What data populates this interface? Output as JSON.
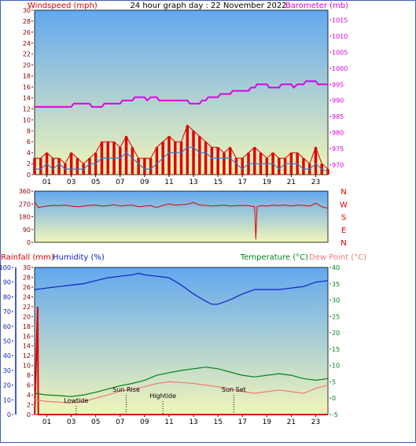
{
  "colors": {
    "wind": "#e00000",
    "gust": "#e00000",
    "avgwind": "#2a7fd6",
    "baro": "#e000e0",
    "dir": "#e00000",
    "rain": "#e00000",
    "humidity": "#1020c0",
    "temp": "#00841a",
    "dew": "#f07878",
    "axis_dark": "#8a0000",
    "sky_top": "#62a8ef",
    "sky_bottom": "#f2f5b8"
  },
  "chart_data": [
    {
      "type": "line",
      "title": "24 hour graph day : 22 November 2022",
      "series_labels": {
        "left": "Windspeed (mph)",
        "right": "Barometer (mb)"
      },
      "x_ticks": [
        "01",
        "03",
        "05",
        "07",
        "09",
        "11",
        "13",
        "15",
        "17",
        "19",
        "21",
        "23"
      ],
      "left_ticks": [
        "0",
        "2",
        "4",
        "6",
        "8",
        "10",
        "12",
        "14",
        "16",
        "18",
        "20",
        "22",
        "24",
        "26",
        "28",
        "30"
      ],
      "right_ticks": [
        "970",
        "975",
        "980",
        "985",
        "990",
        "995",
        "1000",
        "1005",
        "1010",
        "1015"
      ],
      "ylim_left": [
        0,
        30
      ],
      "ylim_right": [
        967,
        1018
      ],
      "xlim": [
        0,
        24
      ],
      "gust": [
        [
          0,
          3
        ],
        [
          0.5,
          3
        ],
        [
          1,
          4
        ],
        [
          1.5,
          3
        ],
        [
          2,
          3
        ],
        [
          2.5,
          2
        ],
        [
          3,
          4
        ],
        [
          3.5,
          3
        ],
        [
          4,
          2
        ],
        [
          4.5,
          3
        ],
        [
          5,
          4
        ],
        [
          5.5,
          6
        ],
        [
          6,
          6
        ],
        [
          6.5,
          6
        ],
        [
          7,
          5
        ],
        [
          7.5,
          7
        ],
        [
          8,
          5
        ],
        [
          8.5,
          3
        ],
        [
          9,
          3
        ],
        [
          9.5,
          3
        ],
        [
          10,
          5
        ],
        [
          10.5,
          6
        ],
        [
          11,
          7
        ],
        [
          11.5,
          6
        ],
        [
          12,
          6
        ],
        [
          12.5,
          9
        ],
        [
          13,
          8
        ],
        [
          13.5,
          7
        ],
        [
          14,
          6
        ],
        [
          14.5,
          5
        ],
        [
          15,
          5
        ],
        [
          15.5,
          4
        ],
        [
          16,
          5
        ],
        [
          16.5,
          3
        ],
        [
          17,
          3
        ],
        [
          17.5,
          4
        ],
        [
          18,
          5
        ],
        [
          18.5,
          4
        ],
        [
          19,
          3
        ],
        [
          19.5,
          4
        ],
        [
          20,
          3
        ],
        [
          20.5,
          3
        ],
        [
          21,
          4
        ],
        [
          21.5,
          4
        ],
        [
          22,
          3
        ],
        [
          22.5,
          2
        ],
        [
          23,
          5
        ],
        [
          23.5,
          2
        ],
        [
          24,
          1
        ]
      ],
      "avg": [
        [
          0,
          1
        ],
        [
          0.5,
          1
        ],
        [
          1,
          2
        ],
        [
          1.5,
          1
        ],
        [
          2,
          2
        ],
        [
          2.5,
          1
        ],
        [
          3,
          1
        ],
        [
          3.5,
          1
        ],
        [
          4,
          1
        ],
        [
          4.5,
          2
        ],
        [
          5,
          2
        ],
        [
          5.5,
          3
        ],
        [
          6,
          3
        ],
        [
          6.5,
          3
        ],
        [
          7,
          3
        ],
        [
          7.5,
          4
        ],
        [
          8,
          3
        ],
        [
          8.5,
          2
        ],
        [
          9,
          1
        ],
        [
          9.5,
          1
        ],
        [
          10,
          2
        ],
        [
          10.5,
          3
        ],
        [
          11,
          4
        ],
        [
          11.5,
          4
        ],
        [
          12,
          4
        ],
        [
          12.5,
          5
        ],
        [
          13,
          5
        ],
        [
          13.5,
          4
        ],
        [
          14,
          4
        ],
        [
          14.5,
          3
        ],
        [
          15,
          3
        ],
        [
          15.5,
          3
        ],
        [
          16,
          3
        ],
        [
          16.5,
          2
        ],
        [
          17,
          1
        ],
        [
          17.5,
          2
        ],
        [
          18,
          2
        ],
        [
          18.5,
          2
        ],
        [
          19,
          2
        ],
        [
          19.5,
          2
        ],
        [
          20,
          1
        ],
        [
          20.5,
          2
        ],
        [
          21,
          2
        ],
        [
          21.5,
          2
        ],
        [
          22,
          1
        ],
        [
          22.5,
          1
        ],
        [
          23,
          2
        ],
        [
          23.5,
          1
        ],
        [
          24,
          0.5
        ]
      ],
      "barometer": [
        [
          0,
          988
        ],
        [
          3,
          988
        ],
        [
          3.2,
          989
        ],
        [
          4.5,
          989
        ],
        [
          4.7,
          988
        ],
        [
          5.5,
          988
        ],
        [
          5.7,
          989
        ],
        [
          7,
          989
        ],
        [
          7.2,
          990
        ],
        [
          8,
          990
        ],
        [
          8.2,
          991
        ],
        [
          9,
          991
        ],
        [
          9.2,
          990
        ],
        [
          9.5,
          991
        ],
        [
          10,
          991
        ],
        [
          10.2,
          990
        ],
        [
          11,
          990
        ],
        [
          12.5,
          990
        ],
        [
          12.7,
          989
        ],
        [
          13,
          989
        ],
        [
          13.5,
          989
        ],
        [
          13.7,
          990
        ],
        [
          14,
          990
        ],
        [
          14.2,
          991
        ],
        [
          15,
          991
        ],
        [
          15.2,
          992
        ],
        [
          16,
          992
        ],
        [
          16.2,
          993
        ],
        [
          17.5,
          993
        ],
        [
          17.7,
          994
        ],
        [
          18,
          994
        ],
        [
          18.2,
          995
        ],
        [
          19,
          995
        ],
        [
          19.2,
          994
        ],
        [
          20,
          994
        ],
        [
          20.2,
          995
        ],
        [
          21,
          995
        ],
        [
          21.2,
          994
        ],
        [
          21.5,
          995
        ],
        [
          22,
          995
        ],
        [
          22.2,
          996
        ],
        [
          23,
          996
        ],
        [
          23.2,
          995
        ],
        [
          24,
          995
        ]
      ]
    },
    {
      "type": "scatter",
      "series_labels": {
        "right": [
          "N",
          "W",
          "S",
          "E",
          "N"
        ]
      },
      "left_ticks": [
        "0",
        "90",
        "180",
        "270",
        "360"
      ],
      "ylim": [
        0,
        360
      ],
      "xlim": [
        0,
        24
      ],
      "direction": [
        [
          0,
          285
        ],
        [
          0.3,
          245
        ],
        [
          0.6,
          250
        ],
        [
          1,
          255
        ],
        [
          1.5,
          260
        ],
        [
          2,
          258
        ],
        [
          2.5,
          262
        ],
        [
          3,
          255
        ],
        [
          3.5,
          250
        ],
        [
          4,
          255
        ],
        [
          4.5,
          260
        ],
        [
          5,
          262
        ],
        [
          5.5,
          255
        ],
        [
          6,
          258
        ],
        [
          6.5,
          265
        ],
        [
          7,
          255
        ],
        [
          7.5,
          260
        ],
        [
          8,
          262
        ],
        [
          8.5,
          250
        ],
        [
          9,
          255
        ],
        [
          9.5,
          258
        ],
        [
          10,
          245
        ],
        [
          10.5,
          260
        ],
        [
          11,
          270
        ],
        [
          11.5,
          262
        ],
        [
          12,
          265
        ],
        [
          12.5,
          268
        ],
        [
          13,
          280
        ],
        [
          13.5,
          262
        ],
        [
          14,
          260
        ],
        [
          14.5,
          255
        ],
        [
          15,
          258
        ],
        [
          15.5,
          262
        ],
        [
          16,
          255
        ],
        [
          16.5,
          258
        ],
        [
          17,
          260
        ],
        [
          17.5,
          258
        ],
        [
          18,
          250
        ],
        [
          18.1,
          20
        ],
        [
          18.2,
          250
        ],
        [
          18.5,
          258
        ],
        [
          19,
          255
        ],
        [
          19.5,
          262
        ],
        [
          20,
          258
        ],
        [
          20.5,
          262
        ],
        [
          21,
          255
        ],
        [
          21.5,
          262
        ],
        [
          22,
          260
        ],
        [
          22.5,
          255
        ],
        [
          23,
          275
        ],
        [
          23.5,
          250
        ],
        [
          24,
          240
        ]
      ]
    },
    {
      "type": "line",
      "series_labels": {
        "rain": "Rainfall (mm)",
        "humidity": "Humidity (%)",
        "temp": "Temperature (°C)",
        "dew": "Dew Point (°C)"
      },
      "rain_ticks": [
        "0",
        "2",
        "4",
        "6",
        "8",
        "10",
        "12",
        "14",
        "16",
        "18",
        "20",
        "22",
        "24",
        "26",
        "28",
        "30"
      ],
      "humidity_ticks": [
        "0",
        "10",
        "20",
        "30",
        "40",
        "50",
        "60",
        "70",
        "80",
        "90",
        "100"
      ],
      "temp_ticks": [
        "-5",
        "0",
        "5",
        "10",
        "15",
        "20",
        "25",
        "30",
        "35",
        "40"
      ],
      "ylim_humidity": [
        0,
        100
      ],
      "ylim_temp": [
        -5,
        40
      ],
      "xlim": [
        0,
        24
      ],
      "humidity": [
        [
          0,
          85
        ],
        [
          1,
          86
        ],
        [
          2,
          87
        ],
        [
          3,
          88
        ],
        [
          4,
          89
        ],
        [
          5,
          91
        ],
        [
          6,
          93
        ],
        [
          7,
          94
        ],
        [
          8,
          95
        ],
        [
          8.5,
          96
        ],
        [
          9,
          95
        ],
        [
          10,
          94
        ],
        [
          11,
          93
        ],
        [
          12,
          88
        ],
        [
          13,
          82
        ],
        [
          14,
          77
        ],
        [
          14.5,
          75
        ],
        [
          15,
          75
        ],
        [
          16,
          78
        ],
        [
          17,
          82
        ],
        [
          18,
          85
        ],
        [
          19,
          85
        ],
        [
          20,
          85
        ],
        [
          21,
          86
        ],
        [
          22,
          87
        ],
        [
          23,
          90
        ],
        [
          24,
          91
        ]
      ],
      "temperature": [
        [
          0,
          1.5
        ],
        [
          1,
          1
        ],
        [
          2,
          0.8
        ],
        [
          3,
          0.5
        ],
        [
          4,
          1
        ],
        [
          5,
          1.8
        ],
        [
          6,
          2.8
        ],
        [
          7,
          3.8
        ],
        [
          8,
          4.5
        ],
        [
          9,
          5.5
        ],
        [
          10,
          7
        ],
        [
          11,
          7.8
        ],
        [
          12,
          8.5
        ],
        [
          13,
          9
        ],
        [
          14,
          9.5
        ],
        [
          15,
          9
        ],
        [
          16,
          8
        ],
        [
          17,
          7
        ],
        [
          18,
          6.5
        ],
        [
          19,
          7
        ],
        [
          20,
          7.5
        ],
        [
          21,
          7
        ],
        [
          22,
          6
        ],
        [
          23,
          5.5
        ],
        [
          24,
          6
        ]
      ],
      "dewpoint": [
        [
          0,
          -0.5
        ],
        [
          1,
          -1
        ],
        [
          2,
          -1.2
        ],
        [
          3,
          -1.5
        ],
        [
          4,
          -1
        ],
        [
          5,
          0
        ],
        [
          6,
          1
        ],
        [
          7,
          2.2
        ],
        [
          8,
          2.8
        ],
        [
          9,
          3.5
        ],
        [
          10,
          4.5
        ],
        [
          11,
          5
        ],
        [
          12,
          4.8
        ],
        [
          13,
          4.5
        ],
        [
          14,
          4
        ],
        [
          15,
          3.5
        ],
        [
          16,
          2.8
        ],
        [
          17,
          2
        ],
        [
          18,
          1.5
        ],
        [
          19,
          2
        ],
        [
          20,
          2.5
        ],
        [
          21,
          2
        ],
        [
          22,
          1.5
        ],
        [
          23,
          3
        ],
        [
          24,
          4
        ]
      ],
      "rainfall": [
        [
          0,
          0
        ],
        [
          0.25,
          22
        ],
        [
          0.3,
          0
        ],
        [
          24,
          0
        ]
      ],
      "events": [
        {
          "label": "Lowtide",
          "x": 3.4
        },
        {
          "label": "Sun Rise",
          "x": 7.5
        },
        {
          "label": "Hightide",
          "x": 10.5
        },
        {
          "label": "Sun Set",
          "x": 16.3
        }
      ]
    }
  ]
}
